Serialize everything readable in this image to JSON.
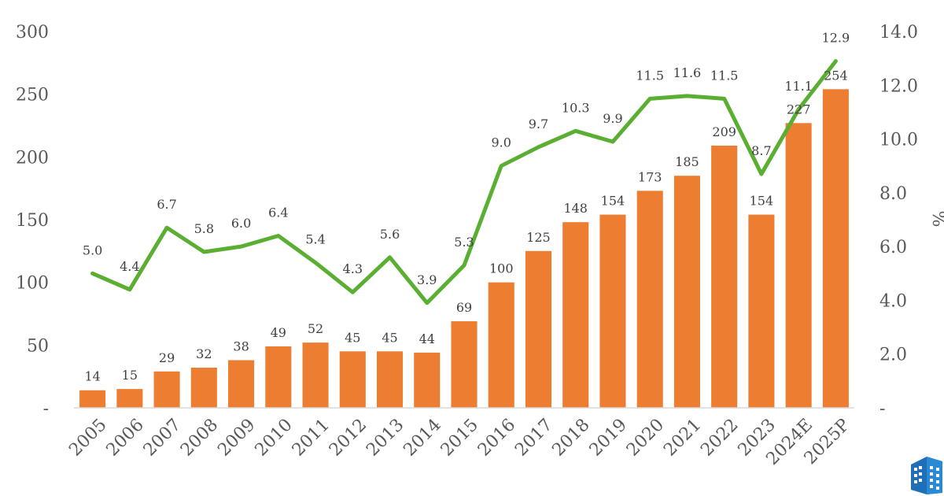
{
  "chart_data": {
    "type": "bar",
    "title": "",
    "categories": [
      "2005",
      "2006",
      "2007",
      "2008",
      "2009",
      "2010",
      "2011",
      "2012",
      "2013",
      "2014",
      "2015",
      "2016",
      "2017",
      "2018",
      "2019",
      "2020",
      "2021",
      "2022",
      "2023",
      "2024E",
      "2025P"
    ],
    "series": [
      {
        "type": "bar",
        "axis": "left",
        "color": "#ED7D31",
        "values": [
          14,
          15,
          29,
          32,
          38,
          49,
          52,
          45,
          45,
          44,
          69,
          100,
          125,
          148,
          154,
          173,
          185,
          209,
          154,
          227,
          254
        ]
      },
      {
        "type": "line",
        "axis": "right",
        "color": "#5AAF32",
        "values": [
          5.0,
          4.4,
          6.7,
          5.8,
          6.0,
          6.4,
          5.4,
          4.3,
          5.6,
          3.9,
          5.3,
          9.0,
          9.7,
          10.3,
          9.9,
          11.5,
          11.6,
          11.5,
          8.7,
          11.1,
          12.9
        ]
      }
    ],
    "ylim": [
      0,
      300
    ],
    "y_ticks": [
      "-",
      "50",
      "100",
      "150",
      "200",
      "250",
      "300"
    ],
    "y2lim": [
      0,
      14
    ],
    "y2_ticks": [
      "-",
      "2.0",
      "4.0",
      "6.0",
      "8.0",
      "10.0",
      "12.0",
      "14.0"
    ],
    "y2label": "%",
    "grid": false
  }
}
